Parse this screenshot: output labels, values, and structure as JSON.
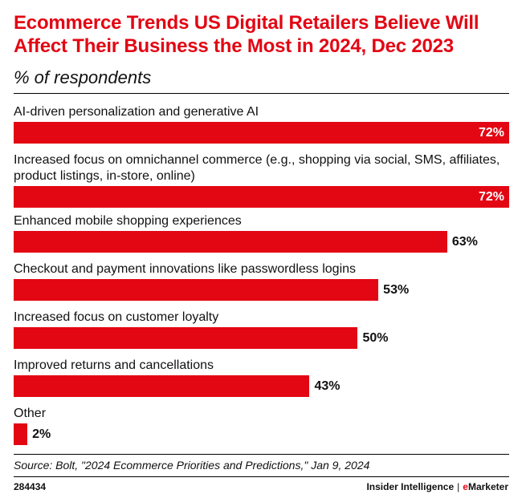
{
  "header": {
    "title": "Ecommerce Trends US Digital Retailers Believe Will Affect Their Business the Most in 2024, Dec 2023",
    "subtitle": "% of respondents"
  },
  "chart_data": {
    "type": "bar",
    "orientation": "horizontal",
    "title": "Ecommerce Trends US Digital Retailers Believe Will Affect Their Business the Most in 2024, Dec 2023",
    "subtitle": "% of respondents",
    "categories": [
      "AI-driven personalization and generative AI",
      "Increased focus on omnichannel commerce (e.g., shopping via social, SMS, affiliates, product listings, in-store, online)",
      "Enhanced mobile shopping experiences",
      "Checkout and payment innovations like passwordless logins",
      "Increased focus on customer loyalty",
      "Improved returns and cancellations",
      "Other"
    ],
    "values": [
      72,
      72,
      63,
      53,
      50,
      43,
      2
    ],
    "value_labels": [
      "72%",
      "72%",
      "63%",
      "53%",
      "50%",
      "43%",
      "2%"
    ],
    "xlim": [
      0,
      72
    ],
    "grid": false,
    "bar_color": "#e30613"
  },
  "footer": {
    "source": "Source: Bolt, \"2024 Ecommerce Priorities and Predictions,\" Jan 9, 2024",
    "chart_id": "284434",
    "brand_left": "Insider Intelligence",
    "brand_sep": "|",
    "brand_e": "e",
    "brand_rest": "Marketer"
  }
}
